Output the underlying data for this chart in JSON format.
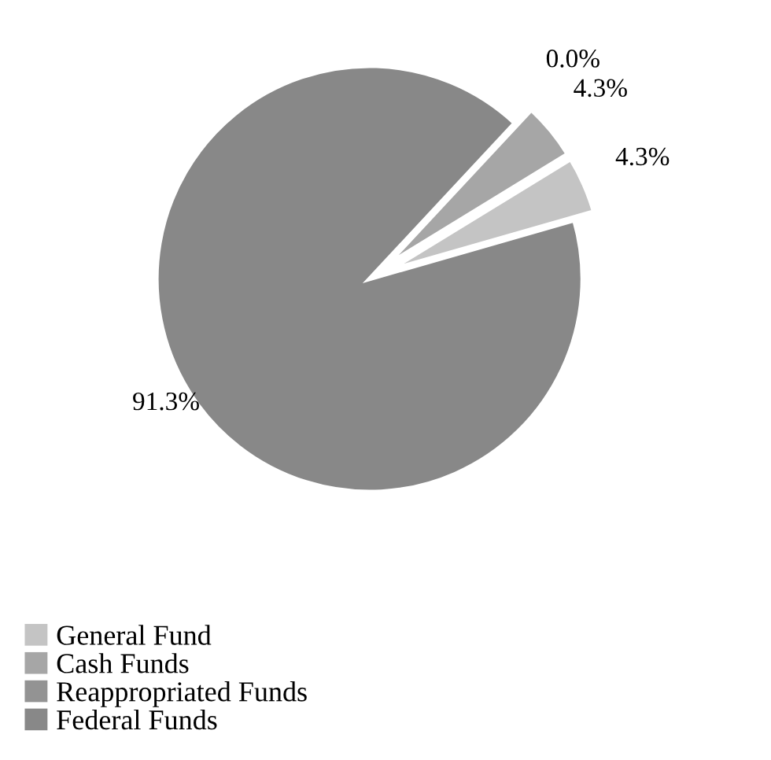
{
  "chart_data": {
    "type": "pie",
    "categories": [
      "General Fund",
      "Cash Funds",
      "Reappropriated Funds",
      "Federal Funds"
    ],
    "values": [
      4.3,
      4.3,
      0.0,
      91.3
    ],
    "colors": [
      "#c4c4c4",
      "#a6a6a6",
      "#939393",
      "#888888"
    ],
    "value_labels": [
      "4.3%",
      "4.3%",
      "0.0%",
      "91.3%"
    ],
    "legend": "bottom left"
  }
}
